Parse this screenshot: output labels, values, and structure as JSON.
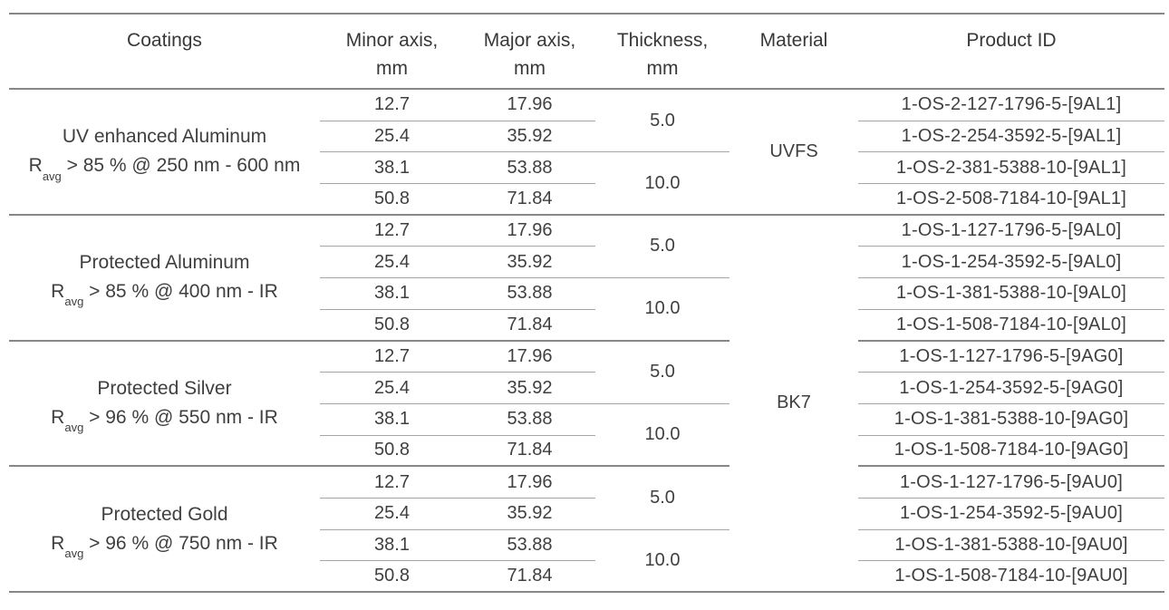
{
  "table": {
    "headers": {
      "coatings": "Coatings",
      "minor1": "Minor axis,",
      "minor2": "mm",
      "major1": "Major axis,",
      "major2": "mm",
      "thickness1": "Thickness,",
      "thickness2": "mm",
      "material": "Material",
      "product": "Product ID"
    },
    "materials": [
      {
        "label": "UVFS"
      },
      {
        "label": "BK7"
      }
    ],
    "groups": [
      {
        "name": "UV enhanced Aluminum",
        "spec_r": "R",
        "spec_sub": "avg",
        "spec_rest": " > 85 % @ 250 nm - 600 nm",
        "thickness": [
          "5.0",
          "10.0"
        ],
        "rows": [
          {
            "minor": "12.7",
            "major": "17.96",
            "id": "1-OS-2-127-1796-5-[9AL1]"
          },
          {
            "minor": "25.4",
            "major": "35.92",
            "id": "1-OS-2-254-3592-5-[9AL1]"
          },
          {
            "minor": "38.1",
            "major": "53.88",
            "id": "1-OS-2-381-5388-10-[9AL1]"
          },
          {
            "minor": "50.8",
            "major": "71.84",
            "id": "1-OS-2-508-7184-10-[9AL1]"
          }
        ]
      },
      {
        "name": "Protected Aluminum",
        "spec_r": "R",
        "spec_sub": "avg",
        "spec_rest": " > 85 % @ 400 nm - IR",
        "thickness": [
          "5.0",
          "10.0"
        ],
        "rows": [
          {
            "minor": "12.7",
            "major": "17.96",
            "id": "1-OS-1-127-1796-5-[9AL0]"
          },
          {
            "minor": "25.4",
            "major": "35.92",
            "id": "1-OS-1-254-3592-5-[9AL0]"
          },
          {
            "minor": "38.1",
            "major": "53.88",
            "id": "1-OS-1-381-5388-10-[9AL0]"
          },
          {
            "minor": "50.8",
            "major": "71.84",
            "id": "1-OS-1-508-7184-10-[9AL0]"
          }
        ]
      },
      {
        "name": "Protected Silver",
        "spec_r": "R",
        "spec_sub": "avg",
        "spec_rest": " > 96 % @ 550 nm - IR",
        "thickness": [
          "5.0",
          "10.0"
        ],
        "rows": [
          {
            "minor": "12.7",
            "major": "17.96",
            "id": "1-OS-1-127-1796-5-[9AG0]"
          },
          {
            "minor": "25.4",
            "major": "35.92",
            "id": "1-OS-1-254-3592-5-[9AG0]"
          },
          {
            "minor": "38.1",
            "major": "53.88",
            "id": "1-OS-1-381-5388-10-[9AG0]"
          },
          {
            "minor": "50.8",
            "major": "71.84",
            "id": "1-OS-1-508-7184-10-[9AG0]"
          }
        ]
      },
      {
        "name": "Protected Gold",
        "spec_r": "R",
        "spec_sub": "avg",
        "spec_rest": " > 96 % @ 750 nm - IR",
        "thickness": [
          "5.0",
          "10.0"
        ],
        "rows": [
          {
            "minor": "12.7",
            "major": "17.96",
            "id": "1-OS-1-127-1796-5-[9AU0]"
          },
          {
            "minor": "25.4",
            "major": "35.92",
            "id": "1-OS-1-254-3592-5-[9AU0]"
          },
          {
            "minor": "38.1",
            "major": "53.88",
            "id": "1-OS-1-381-5388-10-[9AU0]"
          },
          {
            "minor": "50.8",
            "major": "71.84",
            "id": "1-OS-1-508-7184-10-[9AU0]"
          }
        ]
      }
    ]
  }
}
